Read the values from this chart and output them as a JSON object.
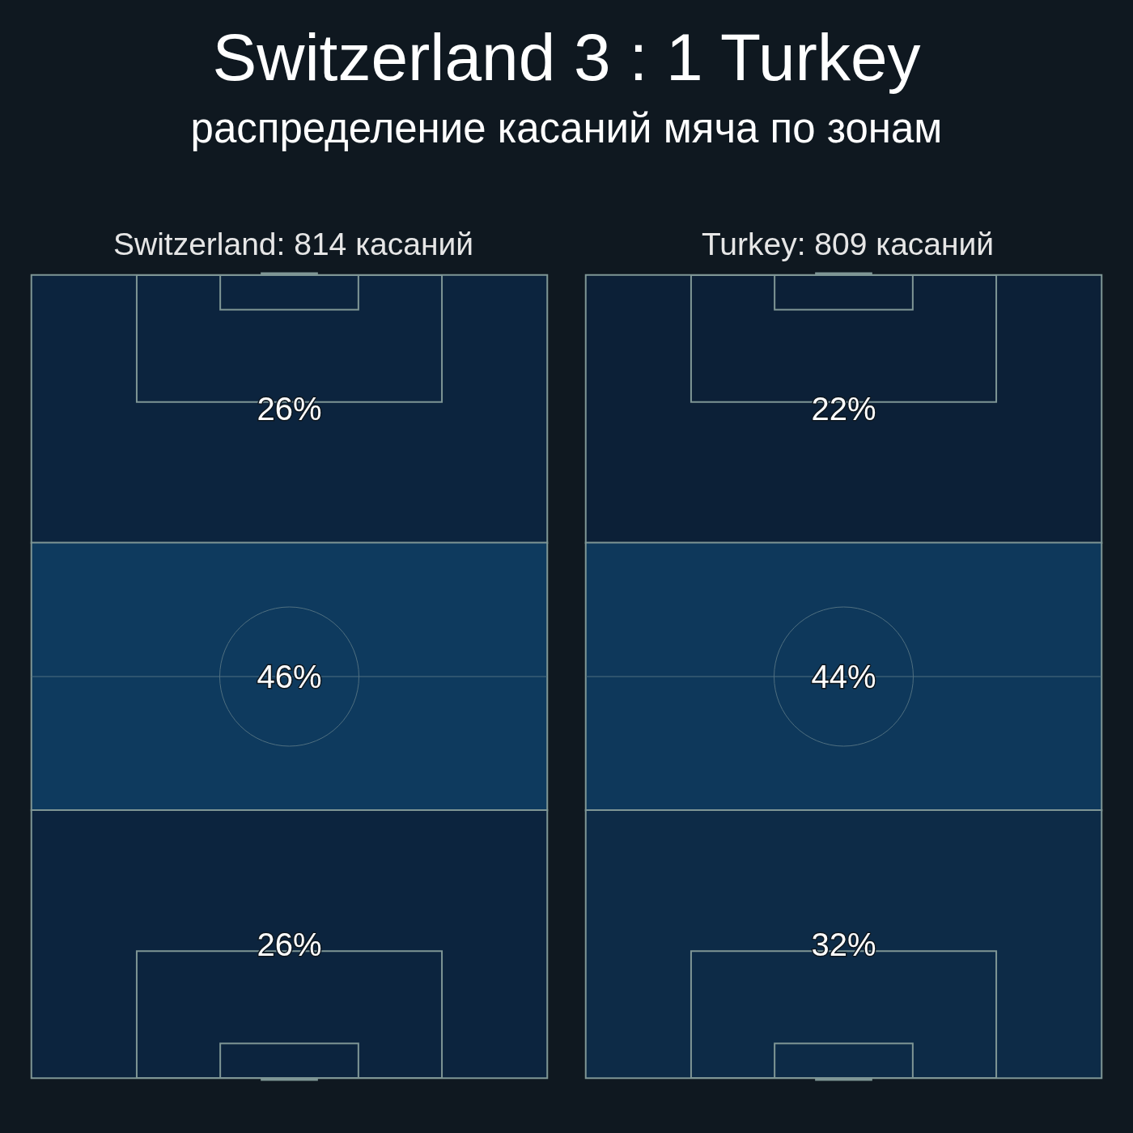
{
  "chart_data": [
    {
      "type": "other",
      "title": "Switzerland 3 : 1 Turkey",
      "subtitle": "распределение касаний мяча по зонам"
    },
    {
      "type": "other",
      "title": "Switzerland: 814 касаний",
      "categories": [
        null,
        null,
        null
      ],
      "values": [
        26,
        46,
        26
      ],
      "value_labels": [
        "26%",
        "46%",
        "26%"
      ]
    },
    {
      "type": "other",
      "title": "Turkey: 809 касаний",
      "categories": [
        null,
        null,
        null
      ],
      "values": [
        22,
        44,
        32
      ],
      "value_labels": [
        "22%",
        "44%",
        "32%"
      ]
    }
  ]
}
